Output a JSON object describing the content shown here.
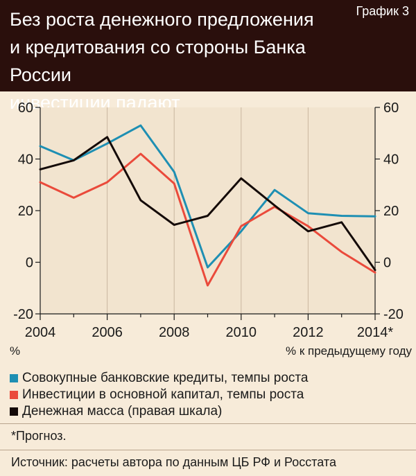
{
  "header": {
    "title_line1": "Без роста денежного предложения",
    "title_line2": "и кредитования со стороны Банка России",
    "title_line3": "инвестиции падают",
    "chart_number": "График 3"
  },
  "chart_data": {
    "type": "line",
    "x": [
      2004,
      2005,
      2006,
      2007,
      2008,
      2009,
      2010,
      2011,
      2012,
      2013,
      2014
    ],
    "x_tick_labels": [
      "2004",
      "2006",
      "2008",
      "2010",
      "2012",
      "2014*"
    ],
    "x_tick_values": [
      2004,
      2006,
      2008,
      2010,
      2012,
      2014
    ],
    "y_ticks": [
      "60",
      "40",
      "20",
      "0",
      "-20"
    ],
    "y_tick_values": [
      60,
      40,
      20,
      0,
      -20
    ],
    "y_right_ticks": [
      "60",
      "40",
      "20",
      "0",
      "-20"
    ],
    "ylim": [
      -20,
      60
    ],
    "xlim": [
      2004,
      2014
    ],
    "left_unit": "%",
    "right_unit": "% к предыдущему году",
    "grid": "vertical",
    "legend_position": "bottom",
    "series": [
      {
        "name": "Совокупные банковские кредиты, темпы роста",
        "color": "#1e8fb3",
        "axis": "left",
        "values": [
          45,
          39.5,
          46,
          53,
          35,
          -2,
          12,
          28,
          19,
          18,
          17.8
        ]
      },
      {
        "name": "Инвестиции в основной капитал, темпы роста",
        "color": "#ea4a3b",
        "axis": "left",
        "values": [
          31,
          25,
          31,
          42,
          30.5,
          -9,
          14,
          21.5,
          14,
          4,
          -4
        ]
      },
      {
        "name": "Денежная масса (правая шкала)",
        "color": "#140a08",
        "axis": "right",
        "values": [
          36,
          39.5,
          48.5,
          24,
          14.5,
          18,
          32.5,
          22,
          12,
          15.5,
          -3
        ]
      }
    ]
  },
  "footnote": "*Прогноз.",
  "source": "Источник: расчеты автора по данным ЦБ РФ и Росстата"
}
